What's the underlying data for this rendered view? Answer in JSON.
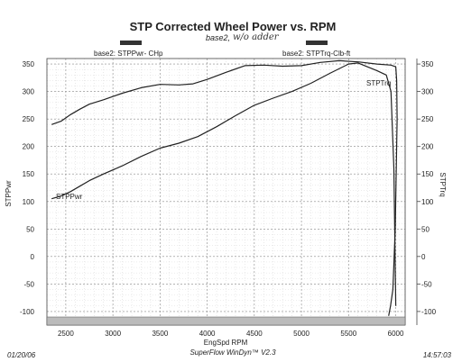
{
  "chart_data": {
    "type": "line",
    "title": "STP Corrected Wheel Power vs. RPM",
    "subtitle": "base2,",
    "handwritten_note": "w/o adder",
    "xlabel": "EngSpd  RPM",
    "ylabel_left": "STPPwr",
    "ylabel_right": "STPTrq",
    "xlim": [
      2300,
      6100
    ],
    "ylim_left": [
      -110,
      360
    ],
    "ylim_right": [
      -110,
      360
    ],
    "x_ticks": [
      "2500",
      "3000",
      "3500",
      "4000",
      "4500",
      "5000",
      "5500",
      "6000"
    ],
    "y_ticks_left": [
      "350",
      "300",
      "250",
      "200",
      "150",
      "100",
      "50",
      "0",
      "-50",
      "-100"
    ],
    "y_ticks_right": [
      "350",
      "300",
      "250",
      "200",
      "150",
      "100",
      "50",
      "0",
      "-50",
      "-100"
    ],
    "grid": true,
    "legend": [
      {
        "label": "base2: STPPwr- CHp",
        "color": "#333333"
      },
      {
        "label": "base2: STPTrq-Clb-ft",
        "color": "#333333"
      }
    ],
    "series": [
      {
        "name": "STPPwr",
        "inline_label": "STPPwr",
        "x": [
          2350,
          2450,
          2550,
          2650,
          2750,
          2900,
          3100,
          3300,
          3500,
          3700,
          3900,
          4100,
          4300,
          4500,
          4700,
          4900,
          5100,
          5300,
          5500,
          5600,
          5700,
          5800,
          5900,
          5950,
          5980,
          6000
        ],
        "values": [
          105,
          110,
          118,
          128,
          138,
          150,
          165,
          182,
          197,
          206,
          218,
          236,
          256,
          275,
          288,
          300,
          315,
          333,
          350,
          352,
          345,
          338,
          330,
          300,
          160,
          -90
        ]
      },
      {
        "name": "STPTrq",
        "inline_label": "STPTrq",
        "x": [
          2350,
          2450,
          2550,
          2650,
          2750,
          2900,
          3100,
          3300,
          3500,
          3700,
          3850,
          4000,
          4200,
          4400,
          4600,
          4800,
          5000,
          5200,
          5400,
          5600,
          5800,
          5950,
          6000,
          6010,
          6015,
          5995,
          5970,
          5945,
          5925
        ],
        "values": [
          240,
          246,
          258,
          268,
          277,
          285,
          297,
          307,
          313,
          312,
          314,
          322,
          335,
          347,
          348,
          346,
          347,
          353,
          356,
          354,
          350,
          348,
          345,
          320,
          250,
          50,
          -60,
          -90,
          -108
        ]
      }
    ]
  },
  "footer": {
    "date": "01/20/06",
    "software": "SuperFlow WinDyn™ V2.3",
    "time": "14:57:03"
  }
}
